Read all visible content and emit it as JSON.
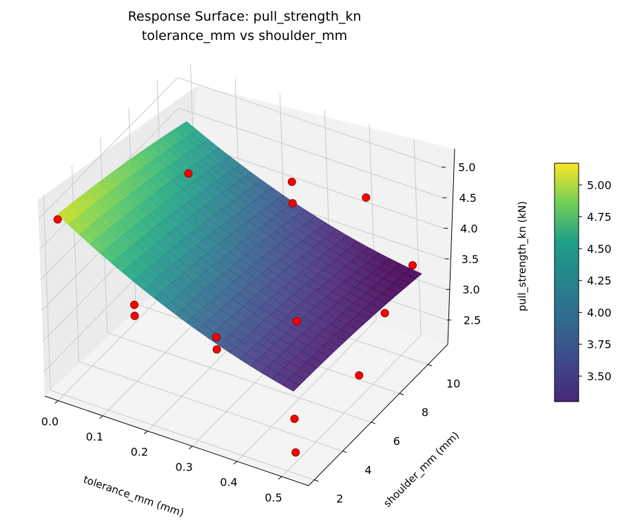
{
  "title_line1": "Response Surface: pull_strength_kn",
  "title_line2": "tolerance_mm vs shoulder_mm",
  "chart_data": {
    "type": "surface",
    "title": "Response Surface: pull_strength_kn",
    "subtitle": "tolerance_mm vs shoulder_mm",
    "xlabel": "tolerance_mm (mm)",
    "ylabel": "shoulder_mm (mm)",
    "zlabel": "pull_strength_kn (kN)",
    "xlim": [
      -0.03,
      0.56
    ],
    "ylim": [
      1.6,
      11.4
    ],
    "zlim": [
      2.1,
      5.3
    ],
    "x_ticks": [
      "0.0",
      "0.1",
      "0.2",
      "0.3",
      "0.4",
      "0.5"
    ],
    "y_ticks": [
      "2",
      "4",
      "6",
      "8",
      "10"
    ],
    "z_ticks": [
      "2.5",
      "3.0",
      "3.5",
      "4.0",
      "4.5",
      "5.0"
    ],
    "surface": {
      "x_range": [
        0.0,
        0.52
      ],
      "y_range": [
        2.0,
        11.0
      ],
      "z_corners": {
        "x0_y2": 5.05,
        "x052_y2": 3.45,
        "x0_y11": 4.45,
        "x052_y11": 3.25
      },
      "colormap": "viridis"
    },
    "colorbar": {
      "ticks": [
        "3.50",
        "3.75",
        "4.00",
        "4.25",
        "4.50",
        "4.75",
        "5.00"
      ],
      "vmin": 3.3,
      "vmax": 5.17
    },
    "points": [
      {
        "x": 0.0,
        "y": 2.0,
        "z": 4.97
      },
      {
        "x": 0.0,
        "y": 11.0,
        "z": 3.6
      },
      {
        "x": 0.1,
        "y": 4.0,
        "z": 3.35
      },
      {
        "x": 0.1,
        "y": 4.0,
        "z": 3.17
      },
      {
        "x": 0.2,
        "y": 6.5,
        "z": 2.48
      },
      {
        "x": 0.2,
        "y": 6.5,
        "z": 2.28
      },
      {
        "x": 0.3,
        "y": 9.0,
        "z": 2.4
      },
      {
        "x": 0.5,
        "y": 11.0,
        "z": 3.34
      },
      {
        "x": 0.3,
        "y": 9.0,
        "z": 4.33
      },
      {
        "x": 0.3,
        "y": 9.0,
        "z": 4.68
      },
      {
        "x": 0.4,
        "y": 11.0,
        "z": 4.2
      },
      {
        "x": 0.52,
        "y": 2.0,
        "z": 2.45
      },
      {
        "x": 0.52,
        "y": 2.0,
        "z": 3.0
      },
      {
        "x": 0.5,
        "y": 9.0,
        "z": 3.03
      },
      {
        "x": 0.52,
        "y": 6.5,
        "z": 2.65
      }
    ],
    "point_color": "#ff0000",
    "point_edge": "#8b0000"
  }
}
